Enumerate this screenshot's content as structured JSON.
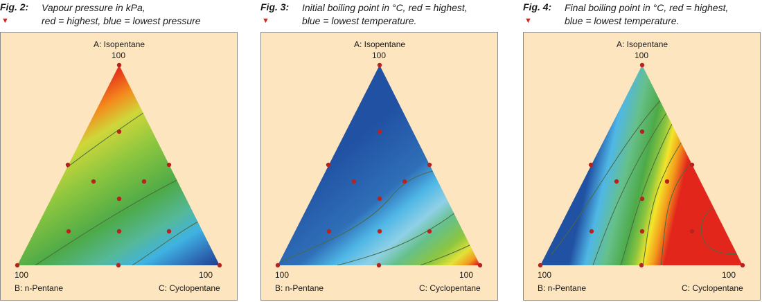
{
  "colors": {
    "panel_bg": "#fde5bf",
    "point": "#b8231d",
    "contour": "#4a6a40",
    "marker": "#d9251c"
  },
  "chart_data": [
    {
      "type": "ternary-contour",
      "figure_label": "Fig. 2:",
      "caption": "Vapour pressure in kPa,\nred = highest, blue = lowest pressure",
      "marker_icon": "red-triangle-down-icon",
      "vertices": {
        "top": "A: Isopentane",
        "left": "B: n-Pentane",
        "right": "C: Cyclopentane"
      },
      "vertex_values": {
        "top": "100",
        "left": "100",
        "right": "100"
      },
      "colormap_gradient": "red = highest (top, A), blue = lowest (right, C)",
      "design_points_abc": [
        [
          100,
          0,
          0
        ],
        [
          0,
          100,
          0
        ],
        [
          0,
          0,
          100
        ],
        [
          50,
          50,
          0
        ],
        [
          50,
          0,
          50
        ],
        [
          0,
          50,
          50
        ],
        [
          66.7,
          16.7,
          16.7
        ],
        [
          16.7,
          66.7,
          16.7
        ],
        [
          16.7,
          16.7,
          66.7
        ],
        [
          33.3,
          33.3,
          33.3
        ]
      ]
    },
    {
      "type": "ternary-contour",
      "figure_label": "Fig. 3:",
      "caption": "Initial boiling point in °C, red = highest,\nblue = lowest temperature.",
      "marker_icon": "red-triangle-down-icon",
      "vertices": {
        "top": "A: Isopentane",
        "left": "B: n-Pentane",
        "right": "C: Cyclopentane"
      },
      "vertex_values": {
        "top": "100",
        "left": "100",
        "right": "100"
      },
      "colormap_gradient": "blue = lowest (A and B region), red = highest (near C)",
      "design_points_abc": [
        [
          100,
          0,
          0
        ],
        [
          0,
          100,
          0
        ],
        [
          0,
          0,
          100
        ],
        [
          50,
          50,
          0
        ],
        [
          50,
          0,
          50
        ],
        [
          0,
          50,
          50
        ],
        [
          66.7,
          16.7,
          16.7
        ],
        [
          16.7,
          66.7,
          16.7
        ],
        [
          16.7,
          16.7,
          66.7
        ],
        [
          33.3,
          33.3,
          33.3
        ]
      ]
    },
    {
      "type": "ternary-contour",
      "figure_label": "Fig. 4:",
      "caption": "Final boiling point in °C, red = highest,\nblue = lowest temperature.",
      "marker_icon": "red-triangle-down-icon",
      "vertices": {
        "top": "A: Isopentane",
        "left": "B: n-Pentane",
        "right": "C: Cyclopentane"
      },
      "vertex_values": {
        "top": "100",
        "left": "100",
        "right": "100"
      },
      "colormap_gradient": "blue = lowest (top-left edge), red = highest (C corner region)",
      "design_points_abc": [
        [
          100,
          0,
          0
        ],
        [
          0,
          100,
          0
        ],
        [
          0,
          0,
          100
        ],
        [
          50,
          50,
          0
        ],
        [
          50,
          0,
          50
        ],
        [
          0,
          50,
          50
        ],
        [
          66.7,
          16.7,
          16.7
        ],
        [
          16.7,
          66.7,
          16.7
        ],
        [
          16.7,
          16.7,
          66.7
        ],
        [
          33.3,
          33.3,
          33.3
        ]
      ]
    }
  ]
}
